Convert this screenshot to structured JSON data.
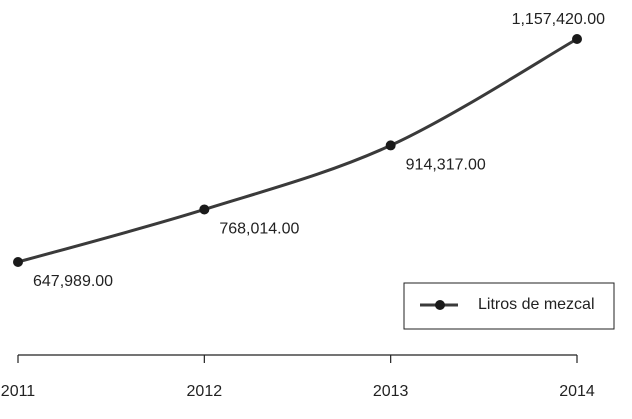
{
  "chart_data": {
    "type": "line",
    "categories": [
      "2011",
      "2012",
      "2013",
      "2014"
    ],
    "series": [
      {
        "name": "Litros de mezcal",
        "color": "#3a3a3a",
        "values": [
          647989,
          768014,
          914317,
          1157420
        ],
        "value_labels": [
          "647,989.00",
          "768,014.00",
          "914,317.00",
          "1,157,420.00"
        ]
      }
    ],
    "legend": "lower right"
  }
}
